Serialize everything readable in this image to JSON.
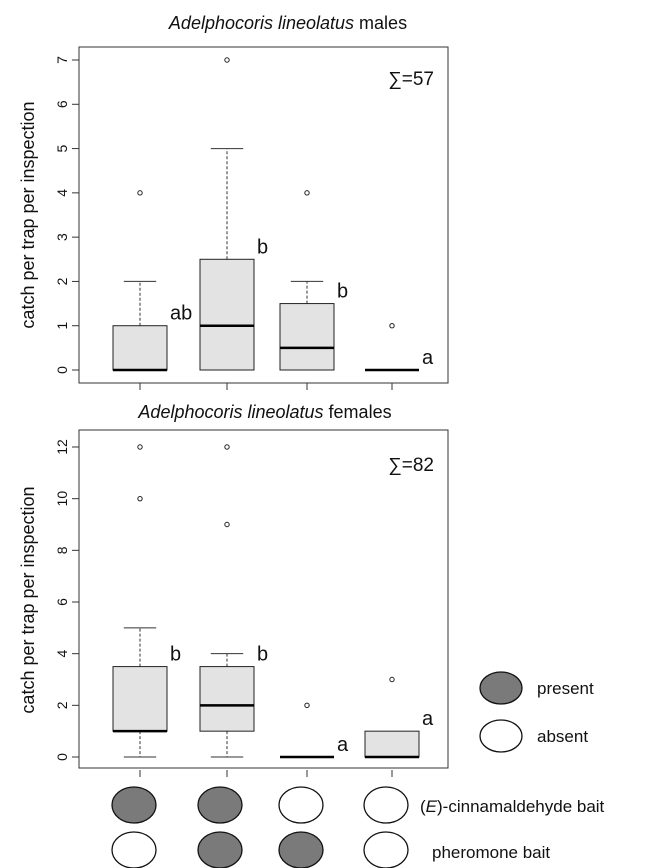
{
  "chart_data": [
    {
      "type": "box",
      "title_italic": "Adelphocoris lineolatus",
      "title_rest": " males",
      "ylabel": "catch per trap per inspection",
      "ylim": [
        0,
        7
      ],
      "yticks": [
        "0",
        "1",
        "2",
        "3",
        "4",
        "5",
        "6",
        "7"
      ],
      "total_label": "∑=57",
      "boxes": [
        {
          "q1": 0,
          "median": 0,
          "q3": 1,
          "whisker_low": 0,
          "whisker_high": 2,
          "outliers": [
            4
          ],
          "letter": "ab",
          "fill_color": "#e3e3e3"
        },
        {
          "q1": 0,
          "median": 1,
          "q3": 2.5,
          "whisker_low": 0,
          "whisker_high": 5,
          "outliers": [
            7
          ],
          "letter": "b",
          "fill_color": "#e3e3e3"
        },
        {
          "q1": 0,
          "median": 0.5,
          "q3": 1.5,
          "whisker_low": 0,
          "whisker_high": 2,
          "outliers": [
            4
          ],
          "letter": "b",
          "fill_color": "#e3e3e3"
        },
        {
          "q1": 0,
          "median": 0,
          "q3": 0,
          "whisker_low": 0,
          "whisker_high": 0,
          "outliers": [
            1
          ],
          "letter": "a",
          "fill_color": "#e3e3e3"
        }
      ]
    },
    {
      "type": "box",
      "title_italic": "Adelphocoris lineolatus",
      "title_rest": " females",
      "ylabel": "catch per trap per inspection",
      "ylim": [
        0,
        12
      ],
      "yticks": [
        "0",
        "2",
        "4",
        "6",
        "8",
        "10",
        "12"
      ],
      "total_label": "∑=82",
      "boxes": [
        {
          "q1": 1,
          "median": 1,
          "q3": 3.5,
          "whisker_low": 0,
          "whisker_high": 5,
          "outliers": [
            10,
            12
          ],
          "letter": "b",
          "fill_color": "#e3e3e3"
        },
        {
          "q1": 1,
          "median": 2,
          "q3": 3.5,
          "whisker_low": 0,
          "whisker_high": 4,
          "outliers": [
            9,
            12
          ],
          "letter": "b",
          "fill_color": "#e3e3e3"
        },
        {
          "q1": 0,
          "median": 0,
          "q3": 0,
          "whisker_low": 0,
          "whisker_high": 0,
          "outliers": [
            2
          ],
          "letter": "a",
          "fill_color": "#e3e3e3"
        },
        {
          "q1": 0,
          "median": 0,
          "q3": 1,
          "whisker_low": 0,
          "whisker_high": 1,
          "outliers": [
            3
          ],
          "letter": "a",
          "fill_color": "#e3e3e3"
        }
      ]
    }
  ],
  "treatments": {
    "rows": [
      {
        "label_italic": "E",
        "label_prefix": "(",
        "label_suffix": ")-cinnamaldehyde bait",
        "values": [
          "present",
          "present",
          "absent",
          "absent"
        ]
      },
      {
        "label_italic": "",
        "label_prefix": "",
        "label_suffix": "pheromone bait",
        "values": [
          "absent",
          "present",
          "present",
          "absent"
        ]
      }
    ],
    "legend": [
      {
        "state": "present",
        "label": "present"
      },
      {
        "state": "absent",
        "label": "absent"
      }
    ]
  },
  "colors": {
    "present": "#7a7a7a",
    "absent": "#ffffff",
    "box_fill": "#e3e3e3"
  }
}
